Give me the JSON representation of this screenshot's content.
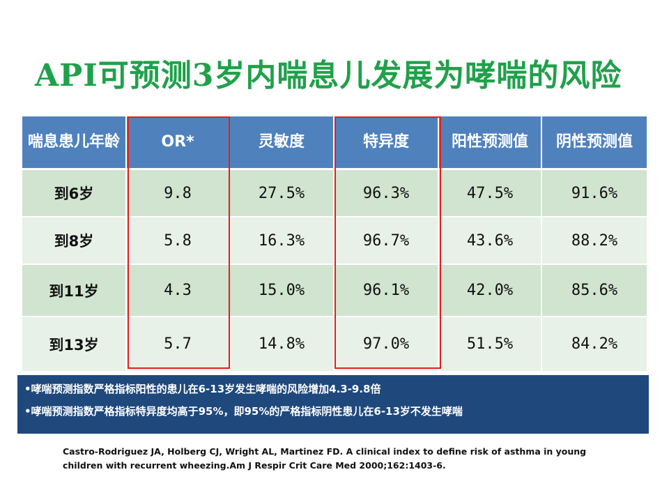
{
  "title": "API可预测3岁内喘息儿发展为哮喘的风险",
  "table": {
    "headers": [
      "喘息患儿年龄",
      "OR*",
      "灵敏度",
      "特异度",
      "阳性预测值",
      "阴性预测值"
    ],
    "rows": [
      [
        "到6岁",
        "9.8",
        "27.5%",
        "96.3%",
        "47.5%",
        "91.6%"
      ],
      [
        "到8岁",
        "5.8",
        "16.3%",
        "96.7%",
        "43.6%",
        "88.2%"
      ],
      [
        "到11岁",
        "4.3",
        "15.0%",
        "96.1%",
        "42.0%",
        "85.6%"
      ],
      [
        "到13岁",
        "5.7",
        "14.8%",
        "97.0%",
        "51.5%",
        "84.2%"
      ]
    ],
    "highlighted_columns": [
      "OR*",
      "特异度"
    ]
  },
  "notes": [
    "•哮喘预测指数严格指标阳性的患儿在6-13岁发生哮喘的风险增加4.3-9.8倍",
    "•哮喘预测指数严格指标特异度均高于95%，即95%的严格指标阴性患儿在6-13岁不发生哮喘"
  ],
  "citation": "Castro-Rodriguez JA, Holberg CJ, Wright AL, Martinez FD. A clinical index to define risk of asthma in young children with recurrent wheezing.Am J Respir Crit Care Med 2000;162:1403-6.",
  "colors": {
    "title": "#1fa14a",
    "header_bg": "#4f81bd",
    "row_dark": "#d0e4cf",
    "row_light": "#e8f1e7",
    "highlight_border": "#e02020",
    "notes_bg": "#1f497d"
  }
}
